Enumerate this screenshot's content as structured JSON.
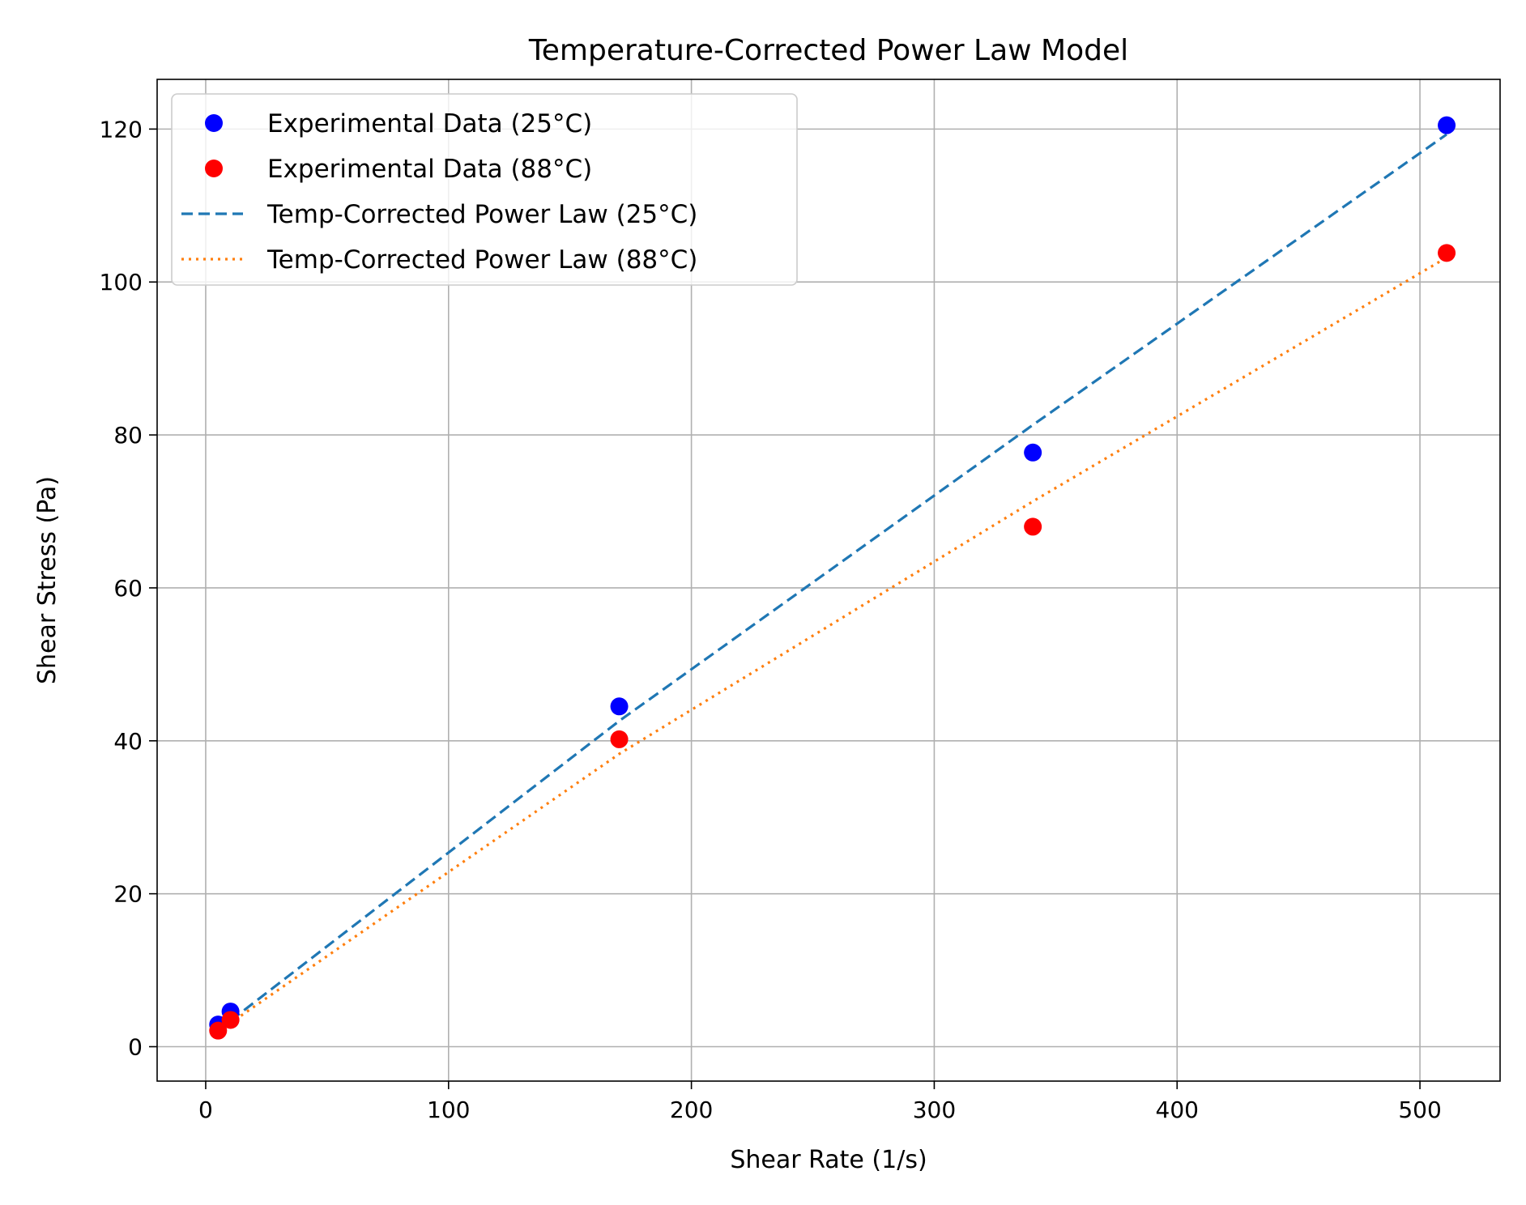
{
  "chart_data": {
    "type": "scatter",
    "title": "Temperature-Corrected Power Law Model",
    "xlabel": "Shear Rate (1/s)",
    "ylabel": "Shear Stress (Pa)",
    "xlim": [
      -20,
      533
    ],
    "ylim": [
      -4.5,
      126.5
    ],
    "xticks": [
      0,
      100,
      200,
      300,
      400,
      500
    ],
    "yticks": [
      0,
      20,
      40,
      60,
      80,
      100,
      120
    ],
    "grid": true,
    "legend_position": "upper-left",
    "scatter_series": [
      {
        "name": "Experimental Data (25°C)",
        "color": "#0000ff",
        "x": [
          5.11,
          10.22,
          170.3,
          340.6,
          511
        ],
        "y": [
          2.9,
          4.6,
          44.5,
          77.7,
          120.5
        ]
      },
      {
        "name": "Experimental Data (88°C)",
        "color": "#ff0000",
        "x": [
          5.11,
          10.22,
          170.3,
          340.6,
          511
        ],
        "y": [
          2.1,
          3.5,
          40.2,
          68.0,
          103.8
        ]
      }
    ],
    "line_series": [
      {
        "name": "Temp-Corrected Power Law (25°C)",
        "color": "#1f77b4",
        "style": "dashed",
        "x": [
          5.11,
          10.22,
          170.3,
          340.6,
          511
        ],
        "y": [
          1.9,
          3.4,
          42.6,
          81.3,
          119.3
        ]
      },
      {
        "name": "Temp-Corrected Power Law (88°C)",
        "color": "#ff7f0e",
        "style": "dotted",
        "x": [
          5.11,
          10.22,
          170.3,
          340.6,
          511
        ],
        "y": [
          1.7,
          3.1,
          38.3,
          71.3,
          103.2
        ]
      }
    ]
  }
}
